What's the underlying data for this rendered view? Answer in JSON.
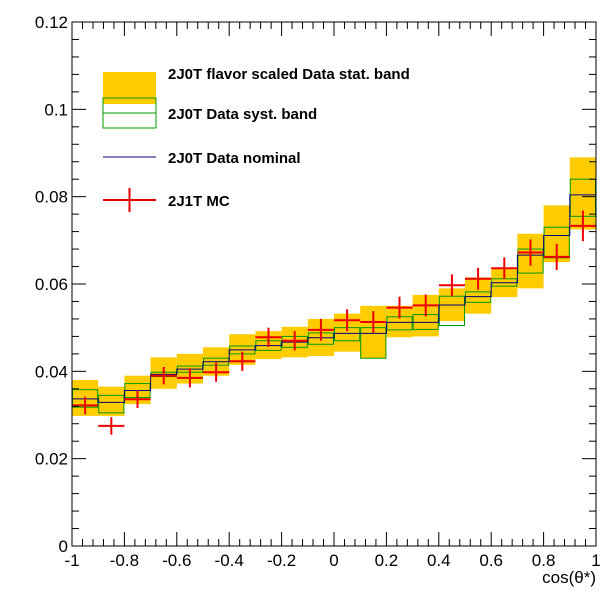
{
  "chart_data": {
    "type": "histogram",
    "title": "",
    "xlabel": "cos(θ*)",
    "ylabel": "",
    "xlim": [
      -1,
      1
    ],
    "ylim": [
      0,
      0.12
    ],
    "x_ticks": [
      -1,
      -0.8,
      -0.6,
      -0.4,
      -0.2,
      0,
      0.2,
      0.4,
      0.6,
      0.8,
      1
    ],
    "x_tick_labels": [
      "-1",
      "-0.8",
      "-0.6",
      "-0.4",
      "-0.2",
      "0",
      "0.2",
      "0.4",
      "0.6",
      "0.8",
      "1"
    ],
    "y_ticks": [
      0,
      0.02,
      0.04,
      0.06,
      0.08,
      0.1,
      0.12
    ],
    "y_tick_labels": [
      "0",
      "0.02",
      "0.04",
      "0.06",
      "0.08",
      "0.1",
      "0.12"
    ],
    "grid": false,
    "legend_position": "top-left",
    "bin_edges": [
      -1,
      -0.9,
      -0.8,
      -0.7,
      -0.6,
      -0.5,
      -0.4,
      -0.3,
      -0.2,
      -0.1,
      0,
      0.1,
      0.2,
      0.3,
      0.4,
      0.5,
      0.6,
      0.7,
      0.8,
      0.9,
      1
    ],
    "series": [
      {
        "name": "2J0T flavor scaled Data stat. band",
        "kind": "band",
        "color": "#ffcc00",
        "center": [
          0.0337,
          0.0329,
          0.0356,
          0.0393,
          0.0405,
          0.0422,
          0.0449,
          0.0459,
          0.0467,
          0.0477,
          0.0487,
          0.0487,
          0.0512,
          0.0512,
          0.0552,
          0.0571,
          0.0603,
          0.0666,
          0.0711,
          0.0804
        ],
        "upper": [
          0.038,
          0.0365,
          0.039,
          0.0432,
          0.044,
          0.0455,
          0.0485,
          0.0492,
          0.0502,
          0.052,
          0.0532,
          0.055,
          0.055,
          0.0575,
          0.059,
          0.0615,
          0.0635,
          0.0715,
          0.078,
          0.089
        ],
        "lower": [
          0.0298,
          0.0298,
          0.0325,
          0.036,
          0.0372,
          0.039,
          0.0415,
          0.0428,
          0.0432,
          0.0435,
          0.0445,
          0.043,
          0.0478,
          0.048,
          0.0515,
          0.0532,
          0.057,
          0.059,
          0.065,
          0.0725
        ]
      },
      {
        "name": "2J0T Data syst. band",
        "kind": "outline-band",
        "color": "#009900",
        "upper": [
          0.0358,
          0.0345,
          0.0372,
          0.0398,
          0.0412,
          0.043,
          0.0458,
          0.047,
          0.048,
          0.0488,
          0.05,
          0.05,
          0.0525,
          0.053,
          0.0572,
          0.0582,
          0.0612,
          0.068,
          0.073,
          0.084
        ],
        "lower": [
          0.0318,
          0.0305,
          0.034,
          0.0388,
          0.0398,
          0.0414,
          0.044,
          0.0448,
          0.0455,
          0.0462,
          0.047,
          0.043,
          0.0495,
          0.0496,
          0.0505,
          0.0558,
          0.0595,
          0.0625,
          0.066,
          0.0755
        ]
      },
      {
        "name": "2J0T Data nominal",
        "kind": "step",
        "color": "#000080",
        "values": [
          0.0337,
          0.0329,
          0.0356,
          0.0393,
          0.0405,
          0.0422,
          0.0449,
          0.0459,
          0.0467,
          0.0477,
          0.0487,
          0.0487,
          0.0512,
          0.0512,
          0.0552,
          0.0571,
          0.0603,
          0.0666,
          0.0711,
          0.0804
        ]
      },
      {
        "name": "2J1T MC",
        "kind": "errorbar",
        "color": "#ee0000",
        "values": [
          0.0322,
          0.0275,
          0.0336,
          0.039,
          0.0385,
          0.0398,
          0.0423,
          0.0478,
          0.047,
          0.0495,
          0.0517,
          0.0513,
          0.0546,
          0.0551,
          0.0597,
          0.0612,
          0.0636,
          0.0672,
          0.0662,
          0.0733
        ],
        "errors": [
          0.002,
          0.002,
          0.002,
          0.002,
          0.0022,
          0.0022,
          0.0022,
          0.0022,
          0.0022,
          0.0025,
          0.0025,
          0.0025,
          0.0025,
          0.0025,
          0.0025,
          0.0025,
          0.0025,
          0.003,
          0.003,
          0.0035
        ]
      }
    ]
  }
}
